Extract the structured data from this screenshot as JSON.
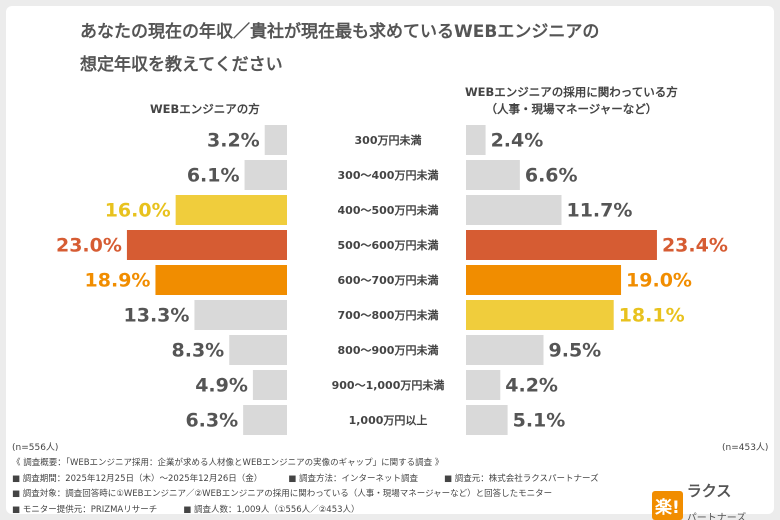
{
  "chart_data": {
    "type": "butterfly",
    "title": "あなたの現在の年収／貴社が現在最も求めているWEBエンジニアの\n想定年収を教えてください",
    "categories": [
      "300万円未満",
      "300～400万円未満",
      "400～500万円未満",
      "500～600万円未満",
      "600～700万円未満",
      "700～800万円未満",
      "800～900万円未満",
      "900～1,000万円未満",
      "1,000万円以上"
    ],
    "xlim": [
      0,
      25
    ],
    "series": [
      {
        "name": "WEBエンジニアの方",
        "side": "left",
        "note": "(n=556人)",
        "values": [
          3.2,
          6.1,
          16.0,
          23.0,
          18.9,
          13.3,
          8.3,
          4.9,
          6.3
        ],
        "value_labels": [
          "3.2%",
          "6.1%",
          "16.0%",
          "23.0%",
          "18.9%",
          "13.3%",
          "8.3%",
          "4.9%",
          "6.3%"
        ],
        "colors": [
          "#d9d9d9",
          "#d9d9d9",
          "#f0cd3c",
          "#d65c33",
          "#f18d00",
          "#d9d9d9",
          "#d9d9d9",
          "#d9d9d9",
          "#d9d9d9"
        ],
        "label_colors": [
          "#555555",
          "#555555",
          "#e8c21e",
          "#d65c33",
          "#f18d00",
          "#555555",
          "#555555",
          "#555555",
          "#555555"
        ]
      },
      {
        "name": "WEBエンジニアの採用に関わっている方\n（人事・現場マネージャーなど）",
        "side": "right",
        "note": "(n=453人)",
        "values": [
          2.4,
          6.6,
          11.7,
          23.4,
          19.0,
          18.1,
          9.5,
          4.2,
          5.1
        ],
        "value_labels": [
          "2.4%",
          "6.6%",
          "11.7%",
          "23.4%",
          "19.0%",
          "18.1%",
          "9.5%",
          "4.2%",
          "5.1%"
        ],
        "colors": [
          "#d9d9d9",
          "#d9d9d9",
          "#d9d9d9",
          "#d65c33",
          "#f18d00",
          "#f0cd3c",
          "#d9d9d9",
          "#d9d9d9",
          "#d9d9d9"
        ],
        "label_colors": [
          "#555555",
          "#555555",
          "#555555",
          "#d65c33",
          "#f18d00",
          "#e8c21e",
          "#555555",
          "#555555",
          "#555555"
        ]
      }
    ],
    "footnotes": [
      [
        "《 調査概要：「WEBエンジニア採用：企業が求める人材像とWEBエンジニアの実像のギャップ」に関する調査 》"
      ],
      [
        "■ 調査期間：2025年12月25日（木）～2025年12月26日（金）",
        "■ 調査方法：インターネット調査",
        "■ 調査元：株式会社ラクスパートナーズ"
      ],
      [
        "■ 調査対象：調査回答時に①WEBエンジニア／②WEBエンジニアの採用に関わっている（人事・現場マネージャーなど）と回答したモニター"
      ],
      [
        "■ モニター提供元：PRIZMAリサーチ",
        "■ 調査人数：1,009人（①556人／②453人）"
      ]
    ],
    "logo": {
      "mark": "楽!",
      "name": "ラクス",
      "sub": "パートナーズ"
    }
  }
}
